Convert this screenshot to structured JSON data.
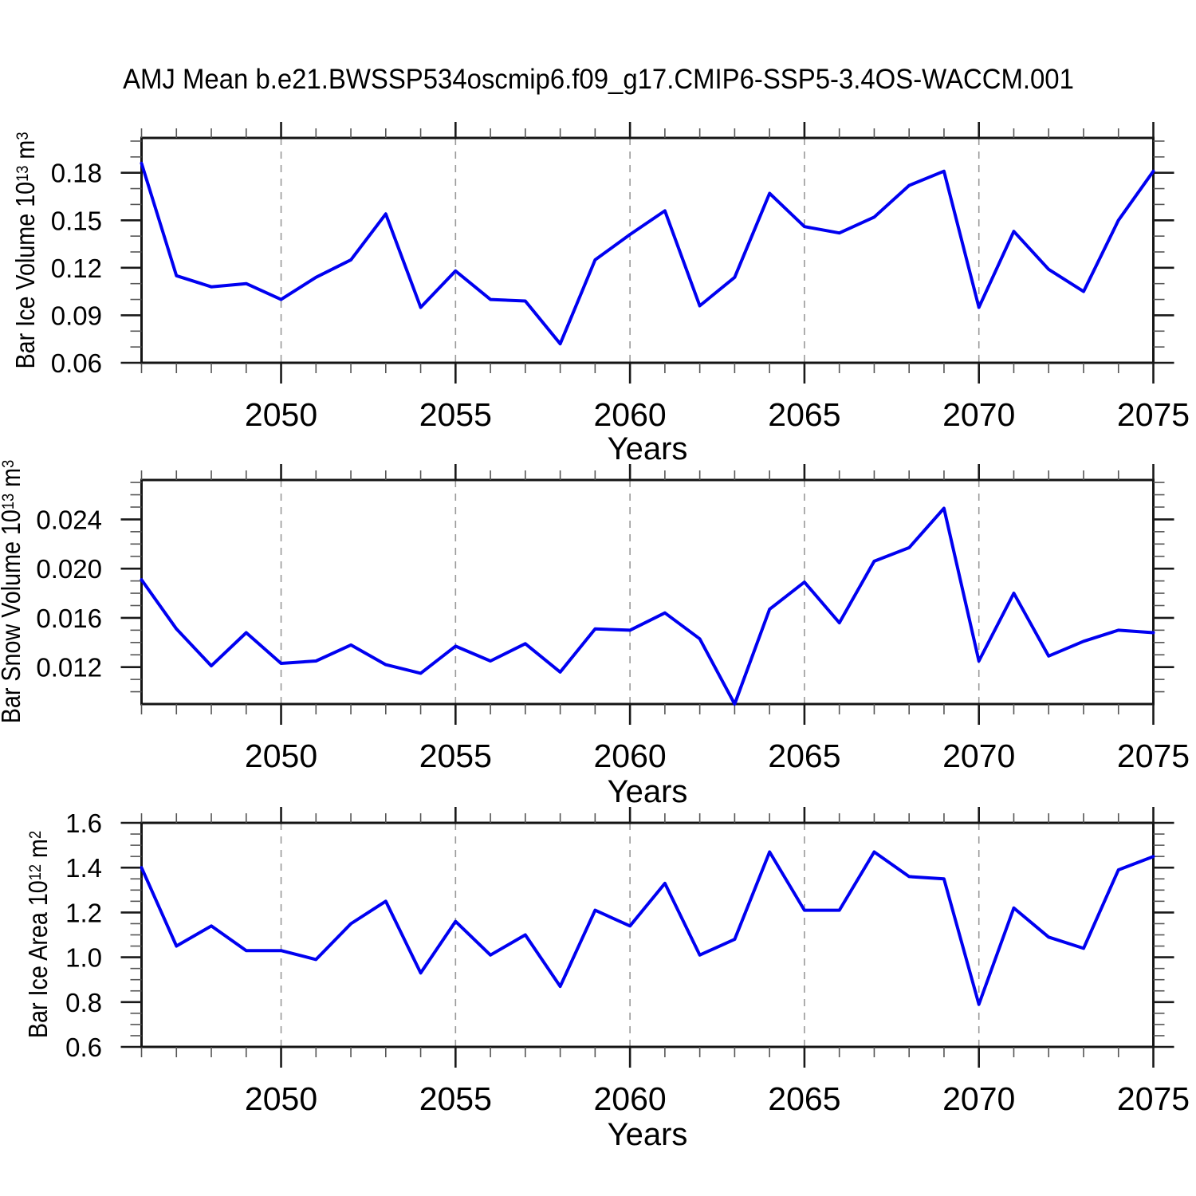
{
  "title": "AMJ Mean b.e21.BWSSP534oscmip6.f09_g17.CMIP6-SSP5-3.4OS-WACCM.001",
  "xlabel": "Years",
  "colors": {
    "line": "#0000f0",
    "grid": "#999999",
    "axis": "#141414",
    "tick_major": "#1a1a1a",
    "tick_minor": "#555555",
    "text": "#000000"
  },
  "years": [
    2046,
    2047,
    2048,
    2049,
    2050,
    2051,
    2052,
    2053,
    2054,
    2055,
    2056,
    2057,
    2058,
    2059,
    2060,
    2061,
    2062,
    2063,
    2064,
    2065,
    2066,
    2067,
    2068,
    2069,
    2070,
    2071,
    2072,
    2073,
    2074,
    2075
  ],
  "x_axis": {
    "range": [
      2046,
      2075
    ],
    "major_ticks": [
      2050,
      2055,
      2060,
      2065,
      2070,
      2075
    ],
    "tick_labels": [
      "2050",
      "2055",
      "2060",
      "2065",
      "2070",
      "2075"
    ],
    "gridlines": [
      2050,
      2055,
      2060,
      2065,
      2070
    ],
    "minor_step": 1
  },
  "chart_data": [
    {
      "type": "line",
      "name": "bar-ice-volume",
      "ylabel": {
        "text": "Bar Ice Volume 10",
        "exp": "13",
        "unit": " m",
        "unit_exp": "3"
      },
      "y_range": [
        0.06,
        0.202
      ],
      "y_major_ticks": [
        0.06,
        0.09,
        0.12,
        0.15,
        0.18
      ],
      "y_tick_labels": [
        "0.06",
        "0.09",
        "0.12",
        "0.15",
        "0.18"
      ],
      "y_minor_step": 0.01,
      "values": [
        0.186,
        0.115,
        0.108,
        0.11,
        0.1,
        0.114,
        0.125,
        0.154,
        0.095,
        0.118,
        0.1,
        0.099,
        0.072,
        0.125,
        0.141,
        0.156,
        0.096,
        0.114,
        0.167,
        0.146,
        0.142,
        0.152,
        0.172,
        0.181,
        0.095,
        0.143,
        0.119,
        0.105,
        0.15,
        0.181
      ]
    },
    {
      "type": "line",
      "name": "bar-snow-volume",
      "ylabel": {
        "text": "Bar Snow Volume 10",
        "exp": "13",
        "unit": " m",
        "unit_exp": "3"
      },
      "y_range": [
        0.009,
        0.0272
      ],
      "y_major_ticks": [
        0.012,
        0.016,
        0.02,
        0.024
      ],
      "y_tick_labels": [
        "0.012",
        "0.016",
        "0.020",
        "0.024"
      ],
      "y_minor_step": 0.001,
      "values": [
        0.0191,
        0.0151,
        0.0121,
        0.0148,
        0.0123,
        0.0125,
        0.0138,
        0.0122,
        0.0115,
        0.0137,
        0.0125,
        0.0139,
        0.0116,
        0.0151,
        0.015,
        0.0164,
        0.0143,
        0.009,
        0.0167,
        0.0189,
        0.0156,
        0.0206,
        0.0217,
        0.0249,
        0.0125,
        0.018,
        0.0129,
        0.0141,
        0.015,
        0.0148
      ]
    },
    {
      "type": "line",
      "name": "bar-ice-area",
      "ylabel": {
        "text": "Bar Ice Area 10",
        "exp": "12",
        "unit": " m",
        "unit_exp": "2"
      },
      "y_range": [
        0.6,
        1.6
      ],
      "y_major_ticks": [
        0.6,
        0.8,
        1.0,
        1.2,
        1.4,
        1.6
      ],
      "y_tick_labels": [
        "0.6",
        "0.8",
        "1.0",
        "1.2",
        "1.4",
        "1.6"
      ],
      "y_minor_step": 0.05,
      "values": [
        1.4,
        1.05,
        1.14,
        1.03,
        1.03,
        0.99,
        1.15,
        1.25,
        0.93,
        1.16,
        1.01,
        1.1,
        0.87,
        1.21,
        1.14,
        1.33,
        1.01,
        1.08,
        1.47,
        1.21,
        1.21,
        1.47,
        1.36,
        1.35,
        0.79,
        1.22,
        1.09,
        1.04,
        1.39,
        1.45
      ]
    }
  ]
}
